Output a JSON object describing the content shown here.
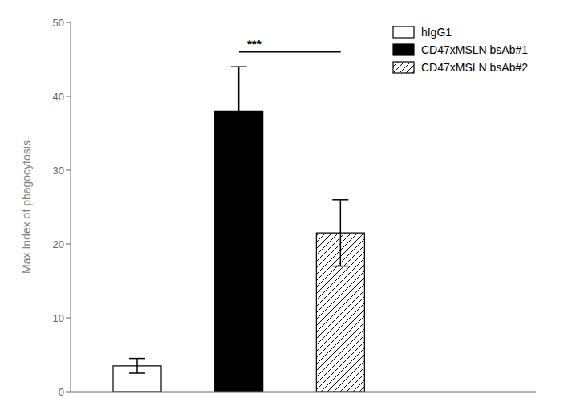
{
  "chart_data": {
    "type": "bar",
    "categories": [
      "hIgG1",
      "CD47xMSLN bsAb#1",
      "CD47xMSLN bsAb#2"
    ],
    "values": [
      3.5,
      38.0,
      21.5
    ],
    "errors": [
      1.0,
      6.0,
      4.5
    ],
    "colors": [
      "white",
      "black",
      "white"
    ],
    "ylabel": "Max Index of phagocytosis",
    "ylim": [
      0,
      50
    ],
    "yticks": [
      0,
      10,
      20,
      30,
      40,
      50
    ],
    "legend": "upper right",
    "tick_labels": "y",
    "grid": false,
    "annotations": [
      {
        "text": "***",
        "x1": "CD47xMSLN bsAb#1",
        "x2": "CD47xMSLN bsAb#2",
        "line_y": 46.0,
        "text_y": 46.5
      }
    ]
  }
}
